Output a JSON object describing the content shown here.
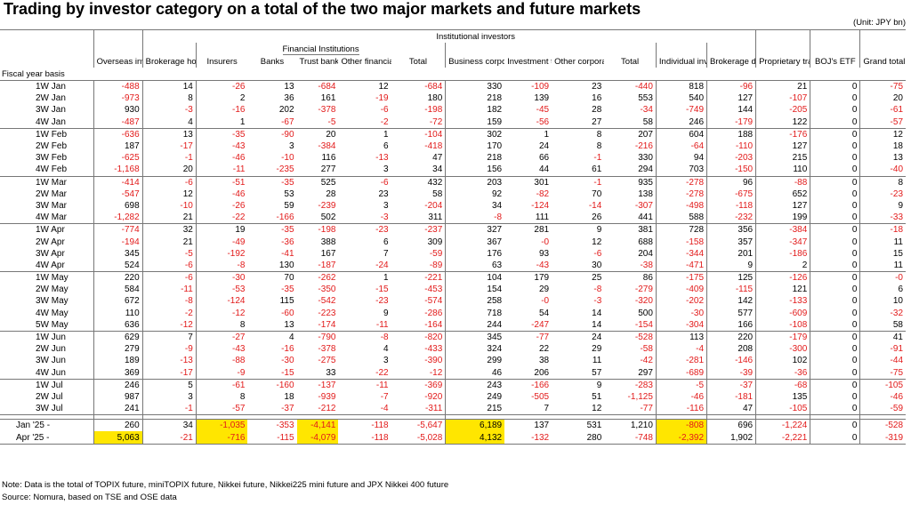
{
  "title": "Trading by investor category on a total of the two major markets and future markets",
  "unit": "(Unit: JPY bn)",
  "headers": {
    "institutional": "Institutional investors",
    "financial_institutions": "Financial Institutions",
    "overseas": "Overseas investors",
    "brokerage_houses": "Brokerage houses",
    "insurers": "Insurers",
    "banks": "Banks",
    "trust_banks": "Trust banks",
    "other_financials": "Other financials",
    "total_fin": "Total",
    "business_corporations": "Business corporations",
    "investment_trusts": "Investment trusts",
    "other_corporations": "Other corporations",
    "total_inst": "Total",
    "individual": "Individual investors",
    "brokerage_dealing": "Brokerage dealing",
    "proprietary": "Proprietary trading",
    "boj_etf": "BOJ's ETF",
    "grand_total": "Grand total"
  },
  "fiscal_label": "Fiscal year basis",
  "rows": [
    {
      "label": "1W Jan",
      "values": [
        "-488",
        "14",
        "-26",
        "13",
        "-684",
        "12",
        "-684",
        "330",
        "-109",
        "23",
        "-440",
        "818",
        "-96",
        "21",
        "0",
        "-75"
      ]
    },
    {
      "label": "2W Jan",
      "values": [
        "-973",
        "8",
        "2",
        "36",
        "161",
        "-19",
        "180",
        "218",
        "139",
        "16",
        "553",
        "540",
        "127",
        "-107",
        "0",
        "20"
      ]
    },
    {
      "label": "3W Jan",
      "values": [
        "930",
        "-3",
        "-16",
        "202",
        "-378",
        "-6",
        "-198",
        "182",
        "-45",
        "28",
        "-34",
        "-749",
        "144",
        "-205",
        "0",
        "-61"
      ]
    },
    {
      "label": "4W Jan",
      "values": [
        "-487",
        "4",
        "1",
        "-67",
        "-5",
        "-2",
        "-72",
        "159",
        "-56",
        "27",
        "58",
        "246",
        "-179",
        "122",
        "0",
        "-57"
      ]
    },
    {
      "label": "1W Feb",
      "values": [
        "-636",
        "13",
        "-35",
        "-90",
        "20",
        "1",
        "-104",
        "302",
        "1",
        "8",
        "207",
        "604",
        "188",
        "-176",
        "0",
        "12"
      ]
    },
    {
      "label": "2W Feb",
      "values": [
        "187",
        "-17",
        "-43",
        "3",
        "-384",
        "6",
        "-418",
        "170",
        "24",
        "8",
        "-216",
        "-64",
        "-110",
        "127",
        "0",
        "18"
      ]
    },
    {
      "label": "3W Feb",
      "values": [
        "-625",
        "-1",
        "-46",
        "-10",
        "116",
        "-13",
        "47",
        "218",
        "66",
        "-1",
        "330",
        "94",
        "-203",
        "215",
        "0",
        "13"
      ]
    },
    {
      "label": "4W Feb",
      "values": [
        "-1,168",
        "20",
        "-11",
        "-235",
        "277",
        "3",
        "34",
        "156",
        "44",
        "61",
        "294",
        "703",
        "-150",
        "110",
        "0",
        "-40"
      ]
    },
    {
      "label": "1W Mar",
      "values": [
        "-414",
        "-6",
        "-51",
        "-35",
        "525",
        "-6",
        "432",
        "203",
        "301",
        "-1",
        "935",
        "-278",
        "96",
        "-88",
        "0",
        "8"
      ]
    },
    {
      "label": "2W Mar",
      "values": [
        "-547",
        "12",
        "-46",
        "53",
        "28",
        "23",
        "58",
        "92",
        "-82",
        "70",
        "138",
        "-278",
        "-675",
        "652",
        "0",
        "-23"
      ]
    },
    {
      "label": "3W Mar",
      "values": [
        "698",
        "-10",
        "-26",
        "59",
        "-239",
        "3",
        "-204",
        "34",
        "-124",
        "-14",
        "-307",
        "-498",
        "-118",
        "127",
        "0",
        "9"
      ]
    },
    {
      "label": "4W Mar",
      "values": [
        "-1,282",
        "21",
        "-22",
        "-166",
        "502",
        "-3",
        "311",
        "-8",
        "111",
        "26",
        "441",
        "588",
        "-232",
        "199",
        "0",
        "-33"
      ]
    },
    {
      "label": "1W Apr",
      "values": [
        "-774",
        "32",
        "19",
        "-35",
        "-198",
        "-23",
        "-237",
        "327",
        "281",
        "9",
        "381",
        "728",
        "356",
        "-384",
        "0",
        "-18"
      ]
    },
    {
      "label": "2W Apr",
      "values": [
        "-194",
        "21",
        "-49",
        "-36",
        "388",
        "6",
        "309",
        "367",
        "-0",
        "12",
        "688",
        "-158",
        "357",
        "-347",
        "0",
        "11"
      ]
    },
    {
      "label": "3W Apr",
      "values": [
        "345",
        "-5",
        "-192",
        "-41",
        "167",
        "7",
        "-59",
        "176",
        "93",
        "-6",
        "204",
        "-344",
        "201",
        "-186",
        "0",
        "15"
      ]
    },
    {
      "label": "4W Apr",
      "values": [
        "524",
        "-6",
        "-8",
        "130",
        "-187",
        "-24",
        "-89",
        "63",
        "-43",
        "30",
        "-38",
        "-471",
        "9",
        "2",
        "0",
        "11"
      ]
    },
    {
      "label": "1W May",
      "values": [
        "220",
        "-6",
        "-30",
        "70",
        "-262",
        "1",
        "-221",
        "104",
        "179",
        "25",
        "86",
        "-175",
        "125",
        "-126",
        "0",
        "-0"
      ]
    },
    {
      "label": "2W May",
      "values": [
        "584",
        "-11",
        "-53",
        "-35",
        "-350",
        "-15",
        "-453",
        "154",
        "29",
        "-8",
        "-279",
        "-409",
        "-115",
        "121",
        "0",
        "6"
      ]
    },
    {
      "label": "3W May",
      "values": [
        "672",
        "-8",
        "-124",
        "115",
        "-542",
        "-23",
        "-574",
        "258",
        "-0",
        "-3",
        "-320",
        "-202",
        "142",
        "-133",
        "0",
        "10"
      ]
    },
    {
      "label": "4W May",
      "values": [
        "110",
        "-2",
        "-12",
        "-60",
        "-223",
        "9",
        "-286",
        "718",
        "54",
        "14",
        "500",
        "-30",
        "577",
        "-609",
        "0",
        "-32"
      ]
    },
    {
      "label": "5W May",
      "values": [
        "636",
        "-12",
        "8",
        "13",
        "-174",
        "-11",
        "-164",
        "244",
        "-247",
        "14",
        "-154",
        "-304",
        "166",
        "-108",
        "0",
        "58"
      ]
    },
    {
      "label": "1W Jun",
      "values": [
        "629",
        "7",
        "-27",
        "4",
        "-790",
        "-8",
        "-820",
        "345",
        "-77",
        "24",
        "-528",
        "113",
        "220",
        "-179",
        "0",
        "41"
      ]
    },
    {
      "label": "2W Jun",
      "values": [
        "279",
        "-9",
        "-43",
        "-16",
        "-378",
        "4",
        "-433",
        "324",
        "22",
        "29",
        "-58",
        "-4",
        "208",
        "-300",
        "0",
        "-91"
      ]
    },
    {
      "label": "3W Jun",
      "values": [
        "189",
        "-13",
        "-88",
        "-30",
        "-275",
        "3",
        "-390",
        "299",
        "38",
        "11",
        "-42",
        "-281",
        "-146",
        "102",
        "0",
        "-44"
      ]
    },
    {
      "label": "4W Jun",
      "values": [
        "369",
        "-17",
        "-9",
        "-15",
        "33",
        "-22",
        "-12",
        "46",
        "206",
        "57",
        "297",
        "-689",
        "-39",
        "-36",
        "0",
        "-75"
      ]
    },
    {
      "label": "1W Jul",
      "values": [
        "246",
        "5",
        "-61",
        "-160",
        "-137",
        "-11",
        "-369",
        "243",
        "-166",
        "9",
        "-283",
        "-5",
        "-37",
        "-68",
        "0",
        "-105"
      ]
    },
    {
      "label": "2W Jul",
      "values": [
        "987",
        "3",
        "8",
        "18",
        "-939",
        "-7",
        "-920",
        "249",
        "-505",
        "51",
        "-1,125",
        "-46",
        "-181",
        "135",
        "0",
        "-46"
      ]
    },
    {
      "label": "3W Jul",
      "values": [
        "241",
        "-1",
        "-57",
        "-37",
        "-212",
        "-4",
        "-311",
        "215",
        "7",
        "12",
        "-77",
        "-116",
        "47",
        "-105",
        "0",
        "-59"
      ]
    }
  ],
  "summary": [
    {
      "label": "Jan '25 -",
      "values": [
        "260",
        "34",
        "-1,035",
        "-353",
        "-4,141",
        "-118",
        "-5,647",
        "6,189",
        "137",
        "531",
        "1,210",
        "-808",
        "696",
        "-1,224",
        "0",
        "-528"
      ]
    },
    {
      "label": "Apr '25 -",
      "values": [
        "5,063",
        "-21",
        "-716",
        "-115",
        "-4,079",
        "-118",
        "-5,028",
        "4,132",
        "-132",
        "280",
        "-748",
        "-2,392",
        "1,902",
        "-2,221",
        "0",
        "-319"
      ]
    }
  ],
  "colors": {
    "negative": "#e21a1a",
    "highlight": "#ffe600"
  },
  "note": "Note: Data is the total of TOPIX future, miniTOPIX future, Nikkei future, Nikkei225 mini future and JPX Nikkei 400 future",
  "source": "Source: Nomura, based on TSE and OSE data"
}
